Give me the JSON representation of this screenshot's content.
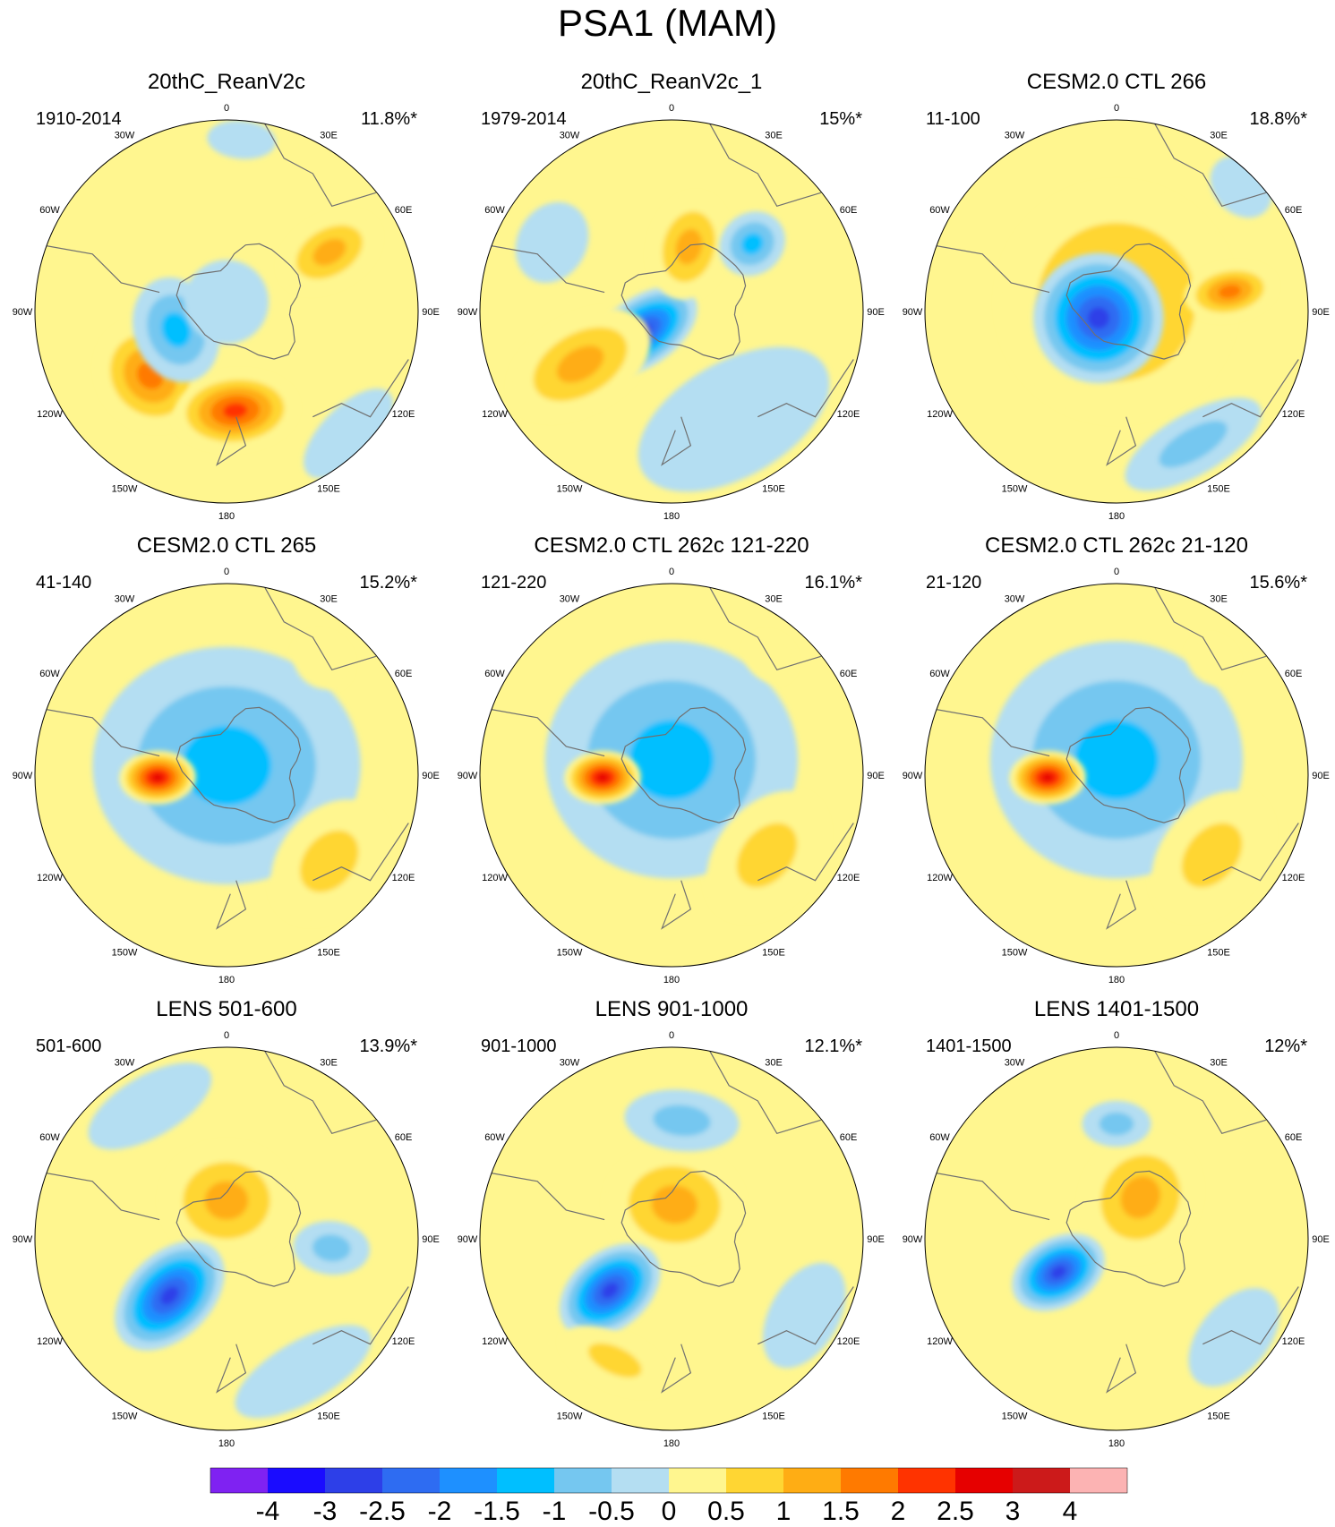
{
  "title": "PSA1 (MAM)",
  "lon_labels": [
    "0",
    "30E",
    "60E",
    "90E",
    "120E",
    "150E",
    "180",
    "150W",
    "120W",
    "90W",
    "60W",
    "30W"
  ],
  "panels": [
    {
      "title": "20thC_ReanV2c",
      "period": "1910-2014",
      "variance": "11.8%*",
      "background": "#fff68f",
      "features": [
        {
          "lon": 230,
          "r": 0.52,
          "sx": 0.3,
          "sy": 0.26,
          "value": 2.0
        },
        {
          "lon": 60,
          "r": 0.62,
          "sx": 0.18,
          "sy": 0.28,
          "value": 1.5
        },
        {
          "lon": 175,
          "r": 0.52,
          "sx": 0.32,
          "sy": 0.2,
          "value": 2.5
        },
        {
          "lon": 250,
          "r": 0.28,
          "sx": 0.28,
          "sy": 0.22,
          "value": -1.5
        },
        {
          "lon": 0,
          "r": 0.05,
          "sx": 0.22,
          "sy": 0.22,
          "value": -0.5
        },
        {
          "lon": 135,
          "r": 0.9,
          "sx": 0.3,
          "sy": 0.14,
          "value": -0.5
        },
        {
          "lon": 5,
          "r": 0.9,
          "sx": 0.18,
          "sy": 0.1,
          "value": -0.5
        }
      ]
    },
    {
      "title": "20thC_ReanV2c_1",
      "period": "1979-2014",
      "variance": "15%*",
      "background": "#fff68f",
      "features": [
        {
          "lon": 235,
          "r": 0.18,
          "sx": 0.18,
          "sy": 0.32,
          "value": -3.0
        },
        {
          "lon": 240,
          "r": 0.55,
          "sx": 0.24,
          "sy": 0.4,
          "value": 1.5
        },
        {
          "lon": 15,
          "r": 0.35,
          "sx": 0.2,
          "sy": 0.28,
          "value": 1.5
        },
        {
          "lon": 50,
          "r": 0.55,
          "sx": 0.16,
          "sy": 0.18,
          "value": -1.5
        },
        {
          "lon": 150,
          "r": 0.65,
          "sx": 0.55,
          "sy": 0.3,
          "value": -0.5
        },
        {
          "lon": 300,
          "r": 0.72,
          "sx": 0.22,
          "sy": 0.18,
          "value": -0.5
        }
      ]
    },
    {
      "title": "CESM2.0 CTL 266",
      "period": "11-100",
      "variance": "18.8%*",
      "background": "#fff68f",
      "features": [
        {
          "lon": 0,
          "r": 0.05,
          "sx": 0.62,
          "sy": 0.62,
          "value": 1.5
        },
        {
          "lon": 250,
          "r": 0.1,
          "sx": 0.34,
          "sy": 0.34,
          "value": -3.0
        },
        {
          "lon": 80,
          "r": 0.6,
          "sx": 0.14,
          "sy": 0.24,
          "value": 2.0
        },
        {
          "lon": 150,
          "r": 0.8,
          "sx": 0.4,
          "sy": 0.16,
          "value": -1.0
        },
        {
          "lon": 45,
          "r": 0.92,
          "sx": 0.18,
          "sy": 0.14,
          "value": -0.5
        }
      ]
    },
    {
      "title": "CESM2.0 CTL 265",
      "period": "41-140",
      "variance": "15.2%*",
      "background": "#fff68f",
      "features": [
        {
          "lon": 0,
          "r": 0.05,
          "sx": 0.7,
          "sy": 0.62,
          "value": -1.5
        },
        {
          "lon": 268,
          "r": 0.36,
          "sx": 0.14,
          "sy": 0.2,
          "value": 3.0
        },
        {
          "lon": 130,
          "r": 0.7,
          "sx": 0.36,
          "sy": 0.26,
          "value": 1.0
        },
        {
          "lon": 40,
          "r": 0.78,
          "sx": 0.16,
          "sy": 0.14,
          "value": 0.5
        }
      ]
    },
    {
      "title": "CESM2.0 CTL 262c 121-220",
      "period": "121-220",
      "variance": "16.1%*",
      "background": "#fff68f",
      "features": [
        {
          "lon": 0,
          "r": 0.08,
          "sx": 0.66,
          "sy": 0.62,
          "value": -1.5
        },
        {
          "lon": 268,
          "r": 0.36,
          "sx": 0.14,
          "sy": 0.2,
          "value": 3.0
        },
        {
          "lon": 130,
          "r": 0.65,
          "sx": 0.38,
          "sy": 0.26,
          "value": 1.0
        },
        {
          "lon": 40,
          "r": 0.8,
          "sx": 0.14,
          "sy": 0.12,
          "value": 0.5
        }
      ]
    },
    {
      "title": "CESM2.0 CTL 262c 21-120",
      "period": "21-120",
      "variance": "15.6%*",
      "background": "#fff68f",
      "features": [
        {
          "lon": 0,
          "r": 0.08,
          "sx": 0.66,
          "sy": 0.62,
          "value": -1.5
        },
        {
          "lon": 268,
          "r": 0.36,
          "sx": 0.14,
          "sy": 0.2,
          "value": 3.0
        },
        {
          "lon": 130,
          "r": 0.65,
          "sx": 0.38,
          "sy": 0.26,
          "value": 1.0
        },
        {
          "lon": 40,
          "r": 0.78,
          "sx": 0.14,
          "sy": 0.12,
          "value": 0.5
        }
      ]
    },
    {
      "title": "LENS 501-600",
      "period": "501-600",
      "variance": "13.9%*",
      "background": "#fff68f",
      "features": [
        {
          "lon": 0,
          "r": 0.2,
          "sx": 0.34,
          "sy": 0.3,
          "value": 1.5
        },
        {
          "lon": 225,
          "r": 0.42,
          "sx": 0.22,
          "sy": 0.34,
          "value": -3.0
        },
        {
          "lon": 95,
          "r": 0.55,
          "sx": 0.14,
          "sy": 0.2,
          "value": -1.0
        },
        {
          "lon": 150,
          "r": 0.8,
          "sx": 0.4,
          "sy": 0.16,
          "value": -0.5
        },
        {
          "lon": 330,
          "r": 0.8,
          "sx": 0.36,
          "sy": 0.16,
          "value": -0.5
        }
      ]
    },
    {
      "title": "LENS 901-1000",
      "period": "901-1000",
      "variance": "12.1%*",
      "background": "#fff68f",
      "features": [
        {
          "lon": 5,
          "r": 0.18,
          "sx": 0.36,
          "sy": 0.3,
          "value": 1.5
        },
        {
          "lon": 230,
          "r": 0.42,
          "sx": 0.2,
          "sy": 0.3,
          "value": -3.0
        },
        {
          "lon": 5,
          "r": 0.62,
          "sx": 0.3,
          "sy": 0.16,
          "value": -1.0
        },
        {
          "lon": 205,
          "r": 0.7,
          "sx": 0.3,
          "sy": 0.14,
          "value": 1.0
        },
        {
          "lon": 120,
          "r": 0.8,
          "sx": 0.3,
          "sy": 0.18,
          "value": -0.5
        }
      ]
    },
    {
      "title": "LENS 1401-1500",
      "period": "1401-1500",
      "variance": "12%*",
      "background": "#fff68f",
      "features": [
        {
          "lon": 30,
          "r": 0.25,
          "sx": 0.3,
          "sy": 0.34,
          "value": 1.5
        },
        {
          "lon": 240,
          "r": 0.35,
          "sx": 0.18,
          "sy": 0.26,
          "value": -3.0
        },
        {
          "lon": 0,
          "r": 0.6,
          "sx": 0.18,
          "sy": 0.12,
          "value": -1.0
        },
        {
          "lon": 130,
          "r": 0.8,
          "sx": 0.3,
          "sy": 0.18,
          "value": -0.5
        }
      ]
    }
  ],
  "chart_data": {
    "type": "heatmap",
    "title": "PSA1 (MAM)",
    "projection": "south polar stereographic",
    "colorbar": {
      "levels": [
        "-4",
        "-3",
        "-2.5",
        "-2",
        "-1.5",
        "-1",
        "-0.5",
        "0",
        "0.5",
        "1",
        "1.5",
        "2",
        "2.5",
        "3",
        "4"
      ],
      "colors": [
        "#7f22f2",
        "#1a0cff",
        "#2d3fe8",
        "#2e6cf2",
        "#1e90ff",
        "#00bfff",
        "#75c7f0",
        "#b4def2",
        "#fff68f",
        "#ffd633",
        "#ffad14",
        "#ff7a00",
        "#ff3300",
        "#e60000",
        "#cc1a1a",
        "#fcb3b3"
      ]
    },
    "panels": [
      {
        "title": "20thC_ReanV2c",
        "period": "1910-2014",
        "variance": "11.8%*"
      },
      {
        "title": "20thC_ReanV2c_1",
        "period": "1979-2014",
        "variance": "15%*"
      },
      {
        "title": "CESM2.0 CTL 266",
        "period": "11-100",
        "variance": "18.8%*"
      },
      {
        "title": "CESM2.0 CTL 265",
        "period": "41-140",
        "variance": "15.2%*"
      },
      {
        "title": "CESM2.0 CTL 262c 121-220",
        "period": "121-220",
        "variance": "16.1%*"
      },
      {
        "title": "CESM2.0 CTL 262c 21-120",
        "period": "21-120",
        "variance": "15.6%*"
      },
      {
        "title": "LENS 501-600",
        "period": "501-600",
        "variance": "13.9%*"
      },
      {
        "title": "LENS 901-1000",
        "period": "901-1000",
        "variance": "12.1%*"
      },
      {
        "title": "LENS 1401-1500",
        "period": "1401-1500",
        "variance": "12%*"
      }
    ]
  }
}
